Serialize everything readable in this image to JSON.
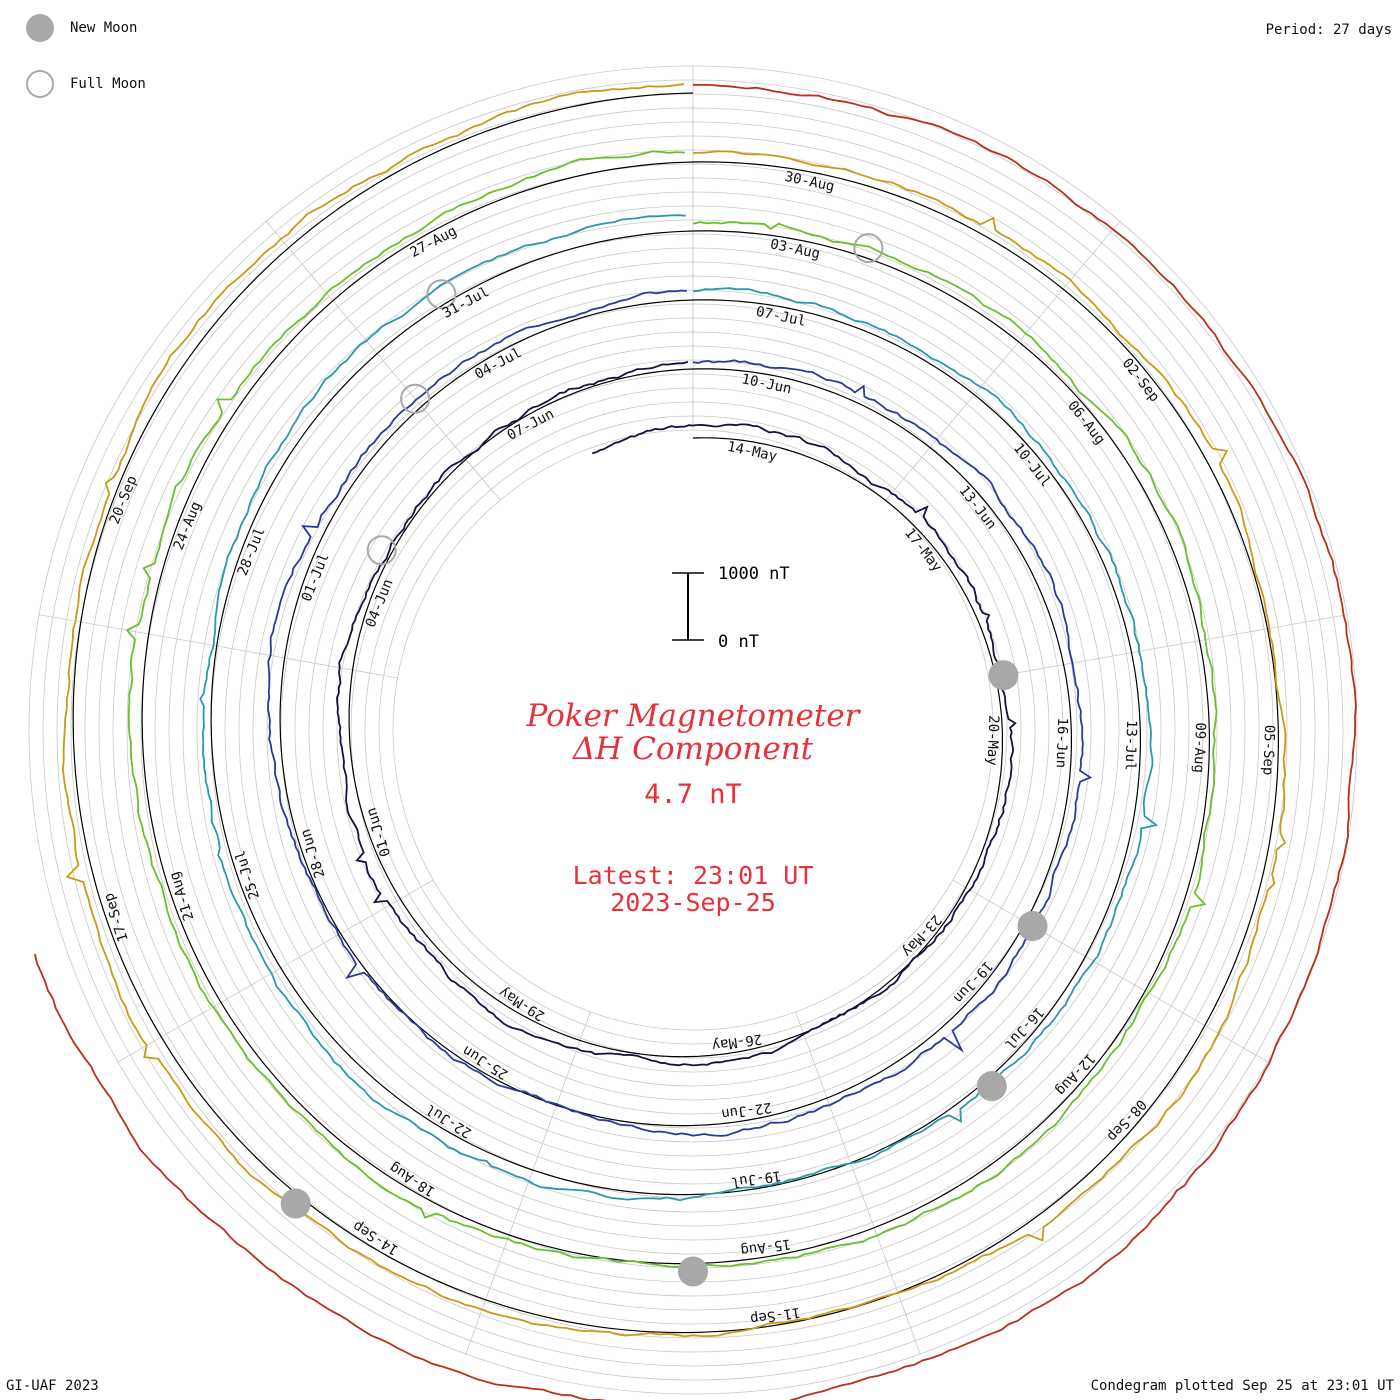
{
  "legend": {
    "new_moon": "New Moon",
    "full_moon": "Full Moon"
  },
  "period": "Period: 27 days",
  "title_line1": "Poker Magnetometer",
  "title_line2": "ΔH Component",
  "current_value": "4.7 nT",
  "latest_line1": "Latest: 23:01 UT",
  "latest_line2": "2023-Sep-25",
  "scale_bar": {
    "top_label": "1000 nT",
    "bottom_label": "0 nT"
  },
  "credit": "GI-UAF 2023",
  "plotted": "Condegram plotted Sep 25 at 23:01 UT",
  "colors": {
    "title": "#e8303a",
    "grid": "#c8c8c8",
    "baseline": "#000000",
    "moon": "#a8a8a8"
  },
  "chart_data": {
    "type": "line",
    "period_days": 27,
    "scale_nT": [
      0,
      1000
    ],
    "series": [
      {
        "color": "#1a1040",
        "tick_labels": [
          "14-May",
          "17-May",
          "20-May",
          "23-May",
          "26-May",
          "29-May",
          "01-Jun",
          "04-Jun",
          "07-Jun"
        ]
      },
      {
        "color": "#2a3a9c",
        "tick_labels": [
          "10-Jun",
          "13-Jun",
          "16-Jun",
          "19-Jun",
          "22-Jun",
          "25-Jun",
          "28-Jun",
          "01-Jul",
          "04-Jul"
        ]
      },
      {
        "color": "#2a9aa8",
        "tick_labels": [
          "07-Jul",
          "10-Jul",
          "13-Jul",
          "16-Jul",
          "19-Jul",
          "22-Jul",
          "25-Jul",
          "28-Jul",
          "31-Jul"
        ]
      },
      {
        "color": "#6cbf2c",
        "tick_labels": [
          "03-Aug",
          "06-Aug",
          "09-Aug",
          "12-Aug",
          "15-Aug",
          "18-Aug",
          "21-Aug",
          "24-Aug",
          "27-Aug"
        ]
      },
      {
        "color": "#c89a18",
        "tick_labels": [
          "30-Aug",
          "02-Sep",
          "05-Sep",
          "08-Sep",
          "11-Sep",
          "14-Sep",
          "17-Sep",
          "20-Sep"
        ]
      },
      {
        "color": "#b8301c",
        "tick_labels": []
      }
    ],
    "new_moon_dates": [
      "19-May",
      "18-Jun",
      "17-Jul",
      "16-Aug",
      "15-Sep"
    ],
    "full_moon_dates": [
      "04-Jun",
      "03-Jul",
      "01-Aug",
      "31-Aug"
    ]
  }
}
